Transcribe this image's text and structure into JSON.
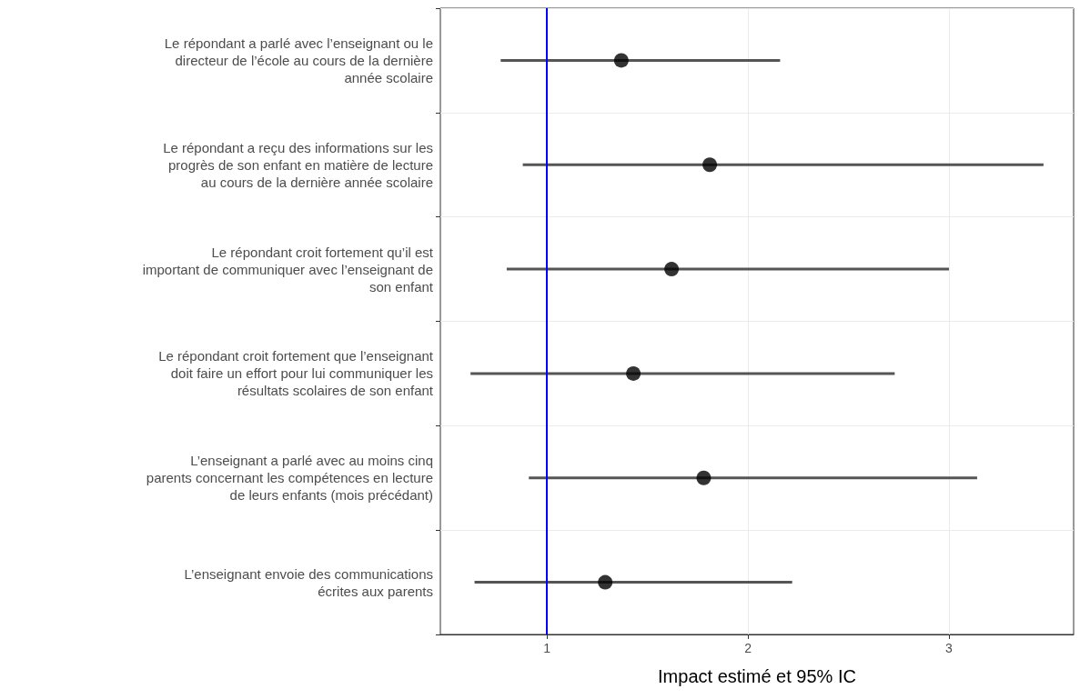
{
  "chart_data": {
    "type": "scatter",
    "orientation": "horizontal",
    "categories": [
      "Le répondant a parlé avec l’enseignant ou le\ndirecteur de l’école au cours de la dernière\nannée scolaire",
      "Le répondant a reçu des informations sur les\nprogrès de son enfant en matière de lecture\nau cours de la dernière année scolaire",
      "Le répondant croit fortement qu’il est\nimportant de communiquer avec l’enseignant de\nson enfant",
      "Le répondant croit fortement que l’enseignant\ndoit faire un effort pour lui communiquer les\nrésultats scolaires de son enfant",
      "L’enseignant a parlé avec au moins cinq\nparents concernant les compétences en lecture\nde leurs enfants (mois précédant)",
      "L’enseignant envoie des communications\nécrites aux parents"
    ],
    "values": [
      1.37,
      1.81,
      1.62,
      1.43,
      1.78,
      1.29
    ],
    "errors": [
      [
        0.77,
        2.16
      ],
      [
        0.88,
        3.47
      ],
      [
        0.8,
        3.0
      ],
      [
        0.62,
        2.73
      ],
      [
        0.91,
        3.14
      ],
      [
        0.64,
        2.22
      ]
    ],
    "color": "#000000",
    "xlabel": "Impact estimé et 95% IC",
    "xlim": [
      0.47,
      3.62
    ],
    "xticks": [
      1,
      2,
      3
    ],
    "ref_lines": [
      {
        "axis": "x",
        "value": 1,
        "color": "#0000ff"
      }
    ],
    "marker": "circle",
    "grid": true
  }
}
